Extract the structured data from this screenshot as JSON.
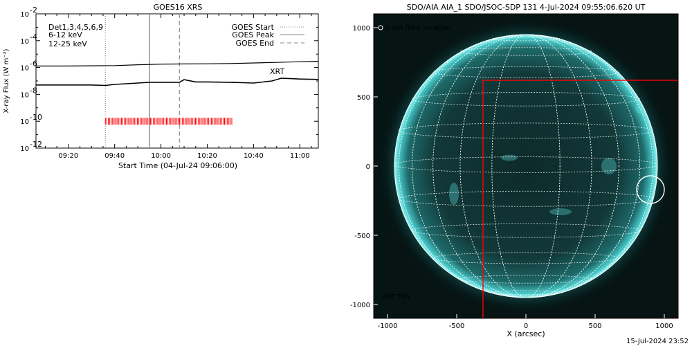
{
  "footer": "15-Jul-2024 23:52",
  "colors": {
    "flux_long": "#000000",
    "flux_short": "#000000",
    "xrt": "#ff0000",
    "det_label": "#000000",
    "low_energy": "#d000d0",
    "high_energy": "#00cc00",
    "sun": "#00e0e0",
    "fov": "#ff0000"
  },
  "chart_data": [
    {
      "type": "line",
      "title": "GOES16 XRS",
      "xlabel": "Start Time (04-Jul-24 09:06:00)",
      "ylabel": "X-ray Flux (W m⁻²)",
      "y_scale": "log",
      "xlim": [
        "09:06",
        "11:08"
      ],
      "ylim": [
        1e-12,
        0.01
      ],
      "x_ticks": [
        "09:20",
        "09:40",
        "10:00",
        "10:20",
        "10:40",
        "11:00"
      ],
      "y_tick_labels": [
        {
          "base": "10",
          "exp": "-2",
          "value": 0.01
        },
        {
          "base": "10",
          "exp": "-4",
          "value": 0.0001
        },
        {
          "base": "10",
          "exp": "-6",
          "value": 1e-06
        },
        {
          "base": "10",
          "exp": "-8",
          "value": 1e-08
        },
        {
          "base": "10",
          "exp": "-10",
          "value": 1e-10
        },
        {
          "base": "10",
          "exp": "-12",
          "value": 1e-12
        }
      ],
      "legend_left": [
        {
          "text": "Det1,3,4,5,6,9",
          "color_key": "det_label"
        },
        {
          "text": "6-12 keV",
          "color_key": "low_energy"
        },
        {
          "text": "12-25 keV",
          "color_key": "high_energy"
        }
      ],
      "legend_right": [
        {
          "name": "GOES Start",
          "style": "dotted"
        },
        {
          "name": "GOES Peak",
          "style": "solid"
        },
        {
          "name": "GOES End",
          "style": "dashed"
        }
      ],
      "xrt_label": "XRT",
      "event_lines": [
        {
          "kind": "GOES Start",
          "time": "09:36",
          "style": "dotted"
        },
        {
          "kind": "GOES Peak",
          "time": "09:55",
          "style": "solid"
        },
        {
          "kind": "GOES End",
          "time": "10:08",
          "style": "dashed"
        }
      ],
      "xrt_obs": {
        "start": "09:36",
        "end": "10:31",
        "flux_level": 1e-10
      },
      "series": [
        {
          "key": "long",
          "x": [
            "09:06",
            "09:20",
            "09:30",
            "09:40",
            "09:50",
            "10:00",
            "10:10",
            "10:20",
            "10:30",
            "10:40",
            "10:50",
            "11:00",
            "11:08"
          ],
          "y": [
            1.3e-06,
            1.3e-06,
            1.35e-06,
            1.4e-06,
            1.6e-06,
            1.8e-06,
            1.85e-06,
            1.9e-06,
            2e-06,
            2.2e-06,
            2.4e-06,
            2.7e-06,
            2.9e-06
          ]
        },
        {
          "key": "short",
          "x": [
            "09:06",
            "09:20",
            "09:30",
            "09:36",
            "09:40",
            "09:50",
            "09:55",
            "10:00",
            "10:08",
            "10:10",
            "10:15",
            "10:20",
            "10:30",
            "10:40",
            "10:48",
            "10:52",
            "11:00",
            "11:08"
          ],
          "y": [
            5e-08,
            5e-08,
            5e-08,
            4.6e-08,
            5.5e-08,
            7e-08,
            8e-08,
            8e-08,
            8e-08,
            1.25e-07,
            8.5e-08,
            8.5e-08,
            8e-08,
            7e-08,
            1e-07,
            1.6e-07,
            1.4e-07,
            1.3e-07
          ]
        }
      ]
    },
    {
      "type": "image",
      "title": "SDO/AIA AIA_1 SDO/JSOC-SDP 131  4-Jul-2024 09:55:06.620 UT",
      "xlabel": "X (arcsec)",
      "ylabel": "",
      "xlim": [
        -1100,
        1100
      ],
      "ylim": [
        -1100,
        1100
      ],
      "x_ticks": [
        -1000,
        -500,
        0,
        500,
        1000
      ],
      "y_ticks": [
        1000,
        500,
        0,
        -500,
        -1000
      ],
      "solar_radius_arcsec": 950,
      "legend": "O AIA flare location",
      "flare_location": {
        "x": 900,
        "y": -170
      },
      "fov": {
        "label": "XRT FOV",
        "x1": -310,
        "x2": 1100,
        "y1": -1100,
        "y2": 620
      }
    }
  ]
}
